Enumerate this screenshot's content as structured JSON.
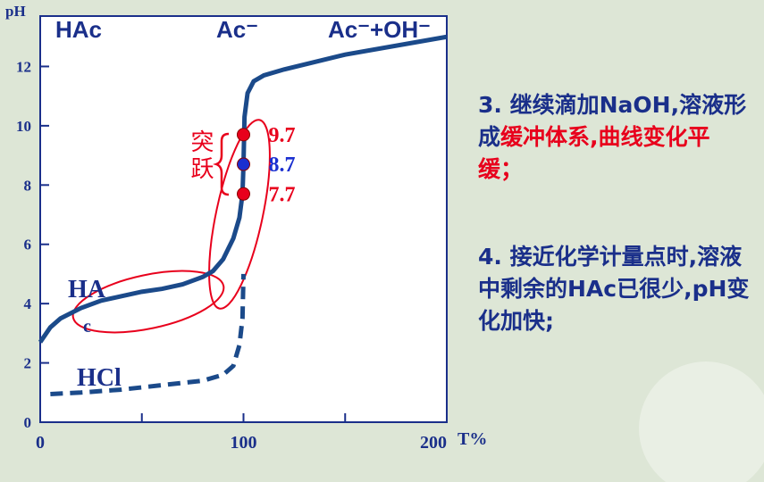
{
  "chart_data": {
    "type": "line",
    "ylabel": "pH",
    "xlabel": "T%",
    "xlim": [
      0,
      200
    ],
    "ylim": [
      0,
      13.7
    ],
    "xticks": [
      0,
      100,
      200
    ],
    "xminorticks": [
      50,
      150
    ],
    "yticks": [
      0,
      2,
      4,
      6,
      8,
      10,
      12
    ],
    "series": [
      {
        "name": "HAc",
        "color": "#1b4a8a",
        "dash": false,
        "x": [
          0,
          5,
          10,
          20,
          30,
          40,
          50,
          60,
          70,
          80,
          85,
          90,
          95,
          98,
          99.5,
          100,
          100.5,
          102,
          105,
          110,
          120,
          150,
          200
        ],
        "values": [
          2.7,
          3.2,
          3.5,
          3.85,
          4.1,
          4.25,
          4.4,
          4.5,
          4.65,
          4.9,
          5.1,
          5.5,
          6.2,
          6.9,
          7.7,
          8.7,
          10.3,
          11.1,
          11.5,
          11.7,
          11.9,
          12.4,
          13.0
        ]
      },
      {
        "name": "HCl",
        "color": "#1b4a8a",
        "dash": true,
        "x": [
          5,
          20,
          40,
          60,
          80,
          90,
          95,
          98,
          99.5,
          100
        ],
        "values": [
          0.95,
          1.0,
          1.1,
          1.25,
          1.4,
          1.6,
          1.9,
          2.6,
          3.5,
          5.0
        ]
      }
    ],
    "points": {
      "x": [
        100,
        100,
        100
      ],
      "values": [
        9.7,
        8.7,
        7.7
      ],
      "colors": [
        "#e8001c",
        "#1a2fd0",
        "#e8001c"
      ]
    },
    "annotations": [
      "HAc",
      "Ac⁻",
      "Ac⁻+OH⁻",
      "HA",
      "c",
      "HCl"
    ],
    "jump_label": "突跃"
  },
  "notes": [
    {
      "runs": [
        {
          "text": "3.  继续滴加NaOH,",
          "highlight": false
        },
        {
          "text": "溶液形成",
          "highlight": false
        },
        {
          "text": "缓冲体系,曲线变化平缓；",
          "highlight": true
        }
      ]
    },
    {
      "runs": [
        {
          "text": "4. 接近化学计量点时,溶液中剩余的HAc已很少,pH变化加快;",
          "highlight": false
        }
      ]
    }
  ],
  "highlight_color": "#e8001c",
  "text_color": "#1a2f8a"
}
